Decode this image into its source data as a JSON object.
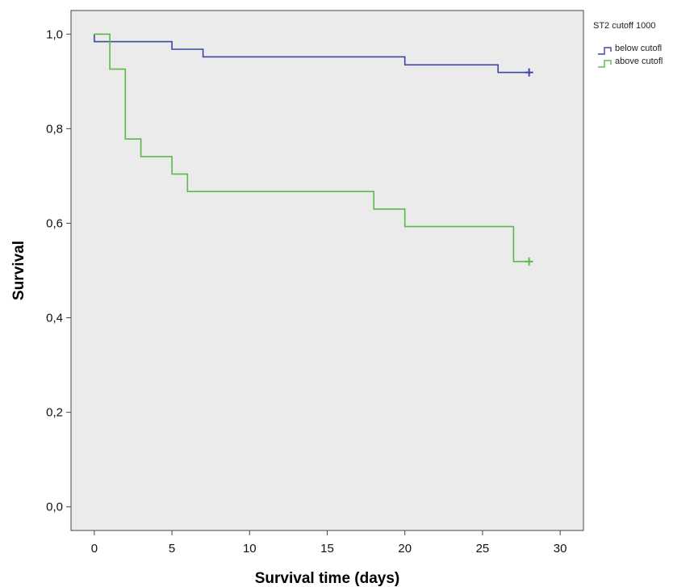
{
  "chart_data": {
    "type": "line",
    "xlabel": "Survival time (days)",
    "ylabel": "Survival",
    "xlim": [
      -1.5,
      31.5
    ],
    "ylim": [
      -0.05,
      1.05
    ],
    "x_ticks": [
      0,
      5,
      10,
      15,
      20,
      25,
      30
    ],
    "y_ticks": [
      0.0,
      0.2,
      0.4,
      0.6,
      0.8,
      1.0
    ],
    "x_tick_labels": [
      "0",
      "5",
      "10",
      "15",
      "20",
      "25",
      "30"
    ],
    "y_tick_labels": [
      "0,0",
      "0,2",
      "0,4",
      "0,6",
      "0,8",
      "1,0"
    ],
    "grid": false,
    "background": "#ebebeb",
    "legend": {
      "title": "ST2 cutoff 1000",
      "placement": "top-right, outside plot"
    },
    "series": [
      {
        "name": "below cutofl",
        "color": "#3c46a6",
        "step": true,
        "points": [
          [
            0,
            1.0
          ],
          [
            0,
            0.984
          ],
          [
            5,
            0.984
          ],
          [
            5,
            0.968
          ],
          [
            7,
            0.968
          ],
          [
            7,
            0.952
          ],
          [
            20,
            0.952
          ],
          [
            20,
            0.935
          ],
          [
            26,
            0.935
          ],
          [
            26,
            0.919
          ],
          [
            28,
            0.919
          ]
        ],
        "censored": [
          [
            28,
            0.919
          ]
        ]
      },
      {
        "name": "above cutofl",
        "color": "#5cb84a",
        "step": true,
        "points": [
          [
            0,
            1.0
          ],
          [
            1,
            1.0
          ],
          [
            1,
            0.926
          ],
          [
            2,
            0.926
          ],
          [
            2,
            0.778
          ],
          [
            3,
            0.778
          ],
          [
            3,
            0.741
          ],
          [
            5,
            0.741
          ],
          [
            5,
            0.704
          ],
          [
            6,
            0.704
          ],
          [
            6,
            0.667
          ],
          [
            18,
            0.667
          ],
          [
            18,
            0.63
          ],
          [
            20,
            0.63
          ],
          [
            20,
            0.593
          ],
          [
            27,
            0.593
          ],
          [
            27,
            0.519
          ],
          [
            28,
            0.519
          ]
        ],
        "censored": [
          [
            28,
            0.519
          ]
        ]
      }
    ]
  }
}
